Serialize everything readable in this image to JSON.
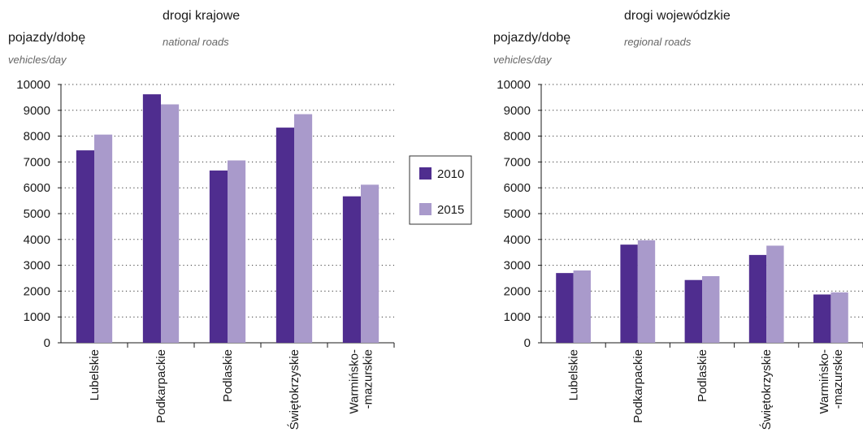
{
  "colors": {
    "series_2010": "#4f2d8f",
    "series_2015": "#a99acb"
  },
  "legend": {
    "items": [
      "2010",
      "2015"
    ]
  },
  "chart_data": [
    {
      "type": "bar",
      "title": "drogi krajowe",
      "subtitle": "national roads",
      "ylabel": "pojazdy/dobę",
      "ylabel_en": "vehicles/day",
      "categories": [
        [
          "Lubelskie"
        ],
        [
          "Podkarpackie"
        ],
        [
          "Podlaskie"
        ],
        [
          "Świętokrzyskie"
        ],
        [
          "Warmińsko-",
          "-mazurskie"
        ]
      ],
      "series": [
        {
          "name": "2010",
          "values": [
            7450,
            9620,
            6670,
            8330,
            5670
          ]
        },
        {
          "name": "2015",
          "values": [
            8060,
            9230,
            7060,
            8850,
            6120
          ]
        }
      ],
      "ylim": [
        0,
        10000
      ],
      "yticks": [
        "0",
        "1000",
        "2000",
        "3000",
        "4000",
        "5000",
        "6000",
        "7000",
        "8000",
        "9000",
        "10000"
      ],
      "grid": true
    },
    {
      "type": "bar",
      "title": "drogi wojewódzkie",
      "subtitle": "regional roads",
      "ylabel": "pojazdy/dobę",
      "ylabel_en": "vehicles/day",
      "categories": [
        [
          "Lubelskie"
        ],
        [
          "Podkarpackie"
        ],
        [
          "Podlaskie"
        ],
        [
          "Świętokrzyskie"
        ],
        [
          "Warmińsko-",
          "-mazurskie"
        ]
      ],
      "series": [
        {
          "name": "2010",
          "values": [
            2700,
            3800,
            2430,
            3400,
            1870
          ]
        },
        {
          "name": "2015",
          "values": [
            2800,
            3970,
            2580,
            3760,
            1950
          ]
        }
      ],
      "ylim": [
        0,
        10000
      ],
      "yticks": [
        "0",
        "1000",
        "2000",
        "3000",
        "4000",
        "5000",
        "6000",
        "7000",
        "8000",
        "9000",
        "10000"
      ],
      "grid": true
    }
  ]
}
